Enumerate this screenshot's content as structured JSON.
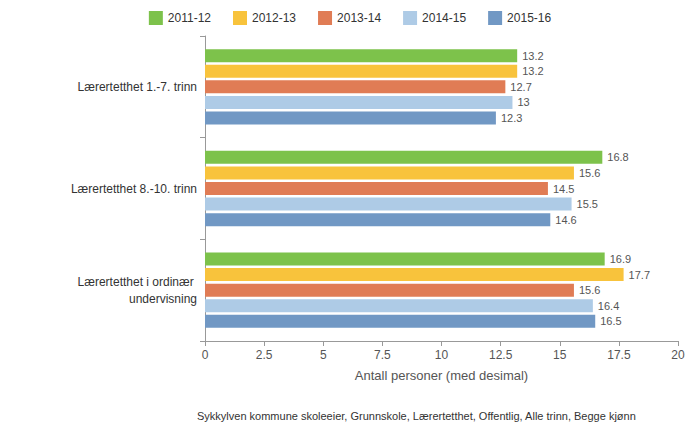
{
  "chart_data": {
    "type": "bar",
    "orientation": "horizontal",
    "categories": [
      "Lærertetthet 1.-7. trinn",
      "Lærertetthet 8.-10. trinn",
      "Lærertetthet i ordinær undervisning"
    ],
    "series": [
      {
        "name": "2011-12",
        "color": "#7dc24b",
        "values": [
          13.2,
          16.8,
          16.9
        ]
      },
      {
        "name": "2012-13",
        "color": "#f8c33c",
        "values": [
          13.2,
          15.6,
          17.7
        ]
      },
      {
        "name": "2013-14",
        "color": "#e07c55",
        "values": [
          12.7,
          14.5,
          15.6
        ]
      },
      {
        "name": "2014-15",
        "color": "#aecbe6",
        "values": [
          13.0,
          15.5,
          16.4
        ]
      },
      {
        "name": "2015-16",
        "color": "#7198c4",
        "values": [
          12.3,
          14.6,
          16.5
        ]
      }
    ],
    "xlabel": "Antall personer (med desimal)",
    "xlim": [
      0,
      20
    ],
    "xticks": [
      0,
      2.5,
      5,
      7.5,
      10,
      12.5,
      15,
      17.5,
      20
    ],
    "source": "Sykkylven kommune skoleeier, Grunnskole, Lærertetthet, Offentlig, Alle trinn, Begge kjønn",
    "grid": false,
    "legend": "top",
    "data_labels": true
  }
}
